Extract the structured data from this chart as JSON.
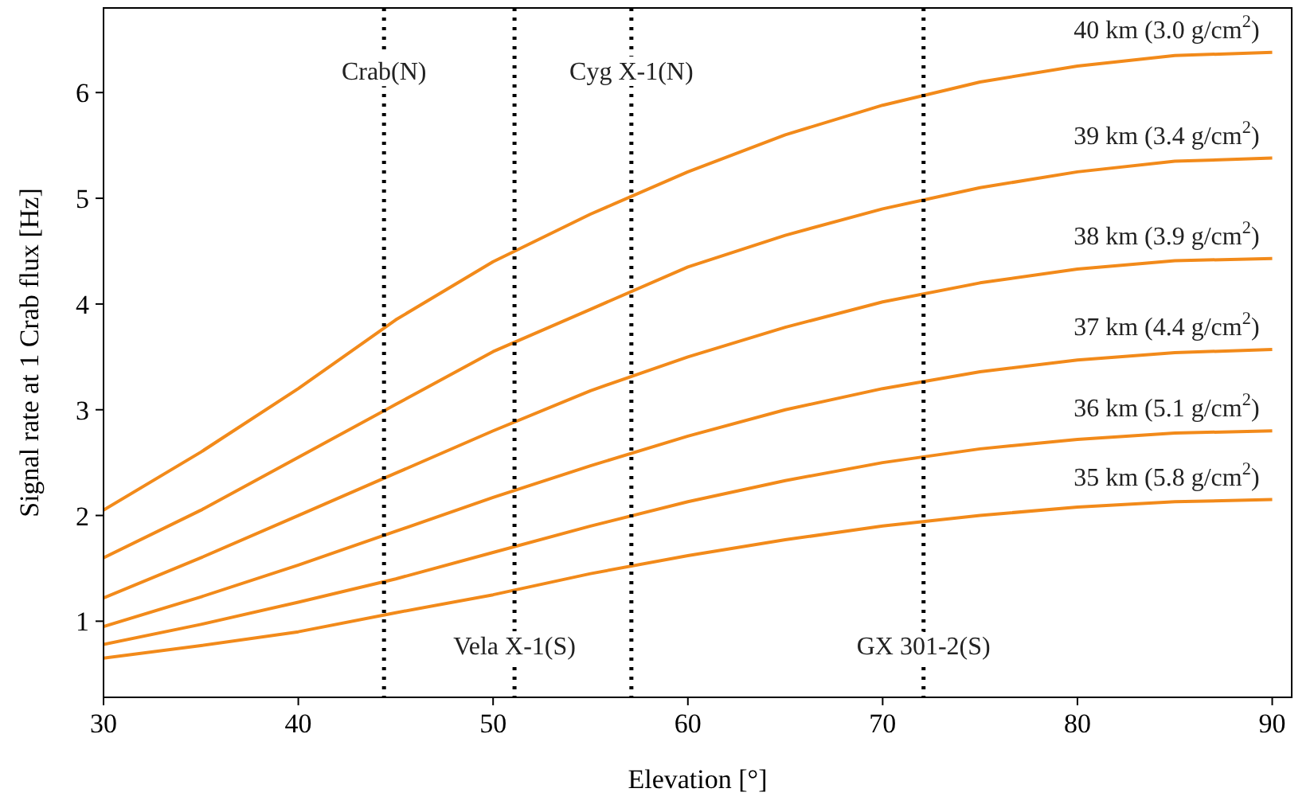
{
  "chart_data": {
    "type": "line",
    "xlabel": "Elevation [°]",
    "ylabel": "Signal rate at 1 Crab flux [Hz]",
    "x": [
      30,
      35,
      40,
      45,
      50,
      55,
      60,
      65,
      70,
      75,
      80,
      85,
      90
    ],
    "series": [
      {
        "name": "40 km (3.0 g/cm$^{2}$)",
        "color": "#f28a1a",
        "values": [
          2.05,
          2.6,
          3.2,
          3.85,
          4.4,
          4.85,
          5.25,
          5.6,
          5.88,
          6.1,
          6.25,
          6.35,
          6.38
        ]
      },
      {
        "name": "39 km (3.4 g/cm$^{2}$)",
        "color": "#f28a1a",
        "values": [
          1.6,
          2.05,
          2.55,
          3.05,
          3.55,
          3.95,
          4.35,
          4.65,
          4.9,
          5.1,
          5.25,
          5.35,
          5.38
        ]
      },
      {
        "name": "38 km (3.9 g/cm$^{2}$)",
        "color": "#f28a1a",
        "values": [
          1.22,
          1.6,
          2.0,
          2.4,
          2.8,
          3.18,
          3.5,
          3.78,
          4.02,
          4.2,
          4.33,
          4.41,
          4.43
        ]
      },
      {
        "name": "37 km (4.4 g/cm$^{2}$)",
        "color": "#f28a1a",
        "values": [
          0.95,
          1.23,
          1.53,
          1.85,
          2.17,
          2.47,
          2.75,
          3.0,
          3.2,
          3.36,
          3.47,
          3.54,
          3.57
        ]
      },
      {
        "name": "36 km (5.1 g/cm$^{2}$)",
        "color": "#f28a1a",
        "values": [
          0.78,
          0.97,
          1.18,
          1.4,
          1.65,
          1.9,
          2.13,
          2.33,
          2.5,
          2.63,
          2.72,
          2.78,
          2.8
        ]
      },
      {
        "name": "35 km (5.8 g/cm$^{2}$)",
        "color": "#f28a1a",
        "values": [
          0.65,
          0.77,
          0.9,
          1.08,
          1.25,
          1.45,
          1.62,
          1.77,
          1.9,
          2.0,
          2.08,
          2.13,
          2.15
        ]
      }
    ],
    "ref_lines": [
      {
        "axis": "x",
        "value": 44.4,
        "label": "Crab(N)",
        "color": "#000000",
        "line_style": "dotted"
      },
      {
        "axis": "x",
        "value": 51.1,
        "label": "Vela X-1(S)",
        "color": "#000000",
        "line_style": "dotted"
      },
      {
        "axis": "x",
        "value": 57.1,
        "label": "Cyg X-1(N)",
        "color": "#000000",
        "line_style": "dotted"
      },
      {
        "axis": "x",
        "value": 72.1,
        "label": "GX 301-2(S)",
        "color": "#000000",
        "line_style": "dotted"
      }
    ],
    "xlim": [
      30,
      91
    ],
    "ylim": [
      0.28,
      6.8
    ],
    "xticks": [
      30,
      40,
      50,
      60,
      70,
      80,
      90
    ],
    "yticks": [
      1,
      2,
      3,
      4,
      5,
      6
    ],
    "marker": "none",
    "line_style": "solid",
    "grid": false
  }
}
